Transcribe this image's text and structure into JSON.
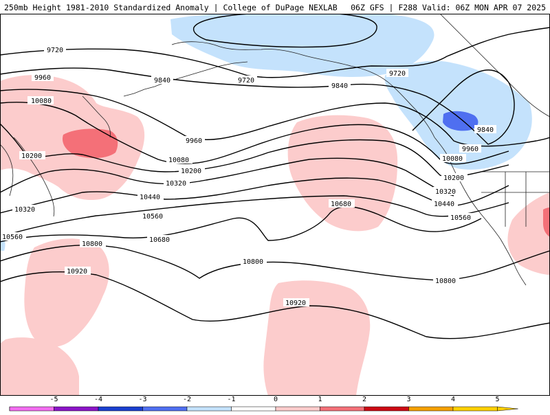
{
  "header": {
    "title": "250mb Height 1981-2010 Standardized Anomaly | College of DuPage NEXLAB",
    "run_info": "06Z GFS | F288 Valid: 06Z MON APR 07 2025"
  },
  "colors": {
    "background": "#ffffff",
    "neg_1": "#c4e2fc",
    "neg_3": "#4f6ff0",
    "pos_1": "#fccccc",
    "pos_2": "#f47078",
    "pos_3": "#e33740",
    "contour": "#000000",
    "coastline": "#222222"
  },
  "contour_labels": {
    "h9720": "9720",
    "h9840": "9840",
    "h9960": "9960",
    "h10080": "10080",
    "h10200": "10200",
    "h10320": "10320",
    "h10440": "10440",
    "h10560": "10560",
    "h10680": "10680",
    "h10800": "10800",
    "h10920": "10920"
  },
  "colorbar": {
    "ticks": [
      "-5",
      "-4",
      "-3",
      "-2",
      "-1",
      "0",
      "1",
      "2",
      "3",
      "4",
      "5"
    ],
    "colors": [
      "#f26cf0",
      "#8b14c7",
      "#1a3fcf",
      "#4f6ff0",
      "#c4e2fc",
      "#ffffff",
      "#fccccc",
      "#f47078",
      "#cc0a14",
      "#f4a000",
      "#fed000"
    ]
  }
}
